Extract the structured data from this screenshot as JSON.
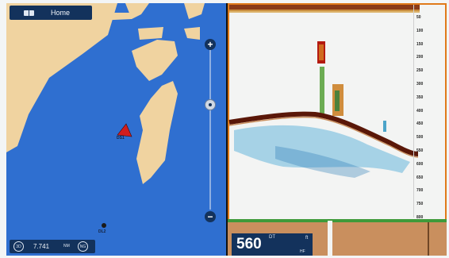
{
  "chart": {
    "home_label": "Home",
    "zoom_in_glyph": "+",
    "zoom_out_glyph": "−",
    "range_value": "7.741",
    "range_unit": "NM",
    "view_3d_label": "3D",
    "nav_label": "NG",
    "vessel_a_label": "DS1",
    "vessel_b_label": "DL2",
    "colors": {
      "water": "#2f6fd0",
      "land": "#f0d3a0",
      "panel": "#13325c"
    },
    "icons": [
      "home-icon",
      "plus-icon",
      "minus-icon",
      "boat-icon",
      "buoy-icon"
    ]
  },
  "sonar": {
    "depth_scale": [
      "50",
      "100",
      "150",
      "200",
      "250",
      "300",
      "350",
      "400",
      "450",
      "500",
      "550",
      "600",
      "650",
      "700",
      "750",
      "800"
    ],
    "depth_value": "560",
    "depth_sup": "DT",
    "depth_unit": "ft",
    "frequency": "HF",
    "colors": {
      "bottom": "#5a1708",
      "border": "#e07a1a",
      "ground": "#c98f5e"
    }
  }
}
